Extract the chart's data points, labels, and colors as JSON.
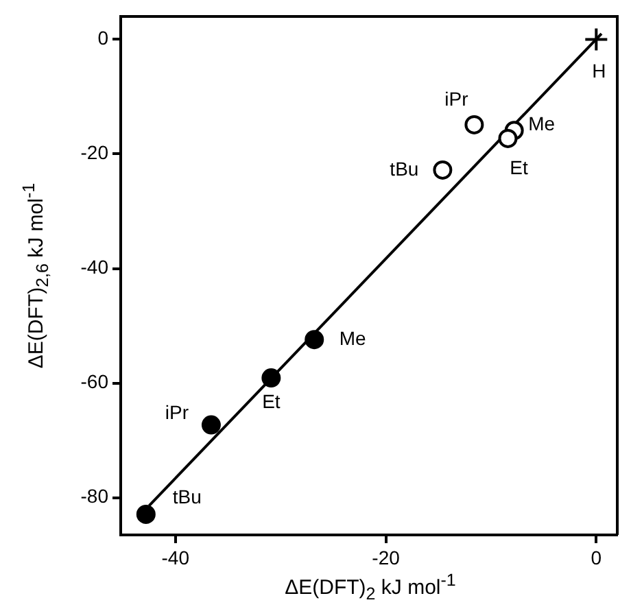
{
  "chart_data": {
    "type": "scatter",
    "xlabel": "ΔE(DFT)$_{2}$  kJ mol$^{-1}$",
    "ylabel": "ΔE(DFT)$_{2,6}$  kJ mol$^{-1}$",
    "xlim": [
      -45.2,
      2
    ],
    "ylim": [
      -86.5,
      4
    ],
    "xticks": [
      -40,
      -20,
      0
    ],
    "yticks": [
      0,
      -20,
      -40,
      -60,
      -80
    ],
    "grid": false,
    "legend": false,
    "series": [
      {
        "color": "#000000",
        "marker": "circle",
        "x": [
          -42.8,
          -36.6,
          -30.9,
          -26.8
        ],
        "values": [
          -82.9,
          -67.3,
          -59.1,
          -52.4
        ]
      },
      {
        "color": "#000000",
        "marker": "circle",
        "x": [
          -11.6,
          -7.8,
          -8.4,
          -14.6
        ],
        "values": [
          -14.9,
          -15.9,
          -17.3,
          -22.8
        ]
      },
      {
        "color": "#000000",
        "marker": "cross",
        "x": [
          0
        ],
        "values": [
          0
        ]
      },
      {
        "type": "line",
        "color": "#000000",
        "marker": "none",
        "x": [
          -42.5,
          0.5
        ],
        "values": [
          -81.4,
          1
        ]
      }
    ],
    "annotations": [
      {
        "text": "tBu",
        "x": -42.8,
        "y": -82.9
      },
      {
        "text": "iPr",
        "x": -36.6,
        "y": -67.3
      },
      {
        "text": "Et",
        "x": -30.9,
        "y": -59.1
      },
      {
        "text": "Me",
        "x": -26.8,
        "y": -52.4
      },
      {
        "text": "iPr",
        "x": -11.6,
        "y": -14.9
      },
      {
        "text": "Me",
        "x": -7.8,
        "y": -15.9
      },
      {
        "text": "Et",
        "x": -8.4,
        "y": -17.3
      },
      {
        "text": "tBu",
        "x": -14.6,
        "y": -22.8
      },
      {
        "text": "H",
        "x": 0,
        "y": 0
      }
    ]
  }
}
